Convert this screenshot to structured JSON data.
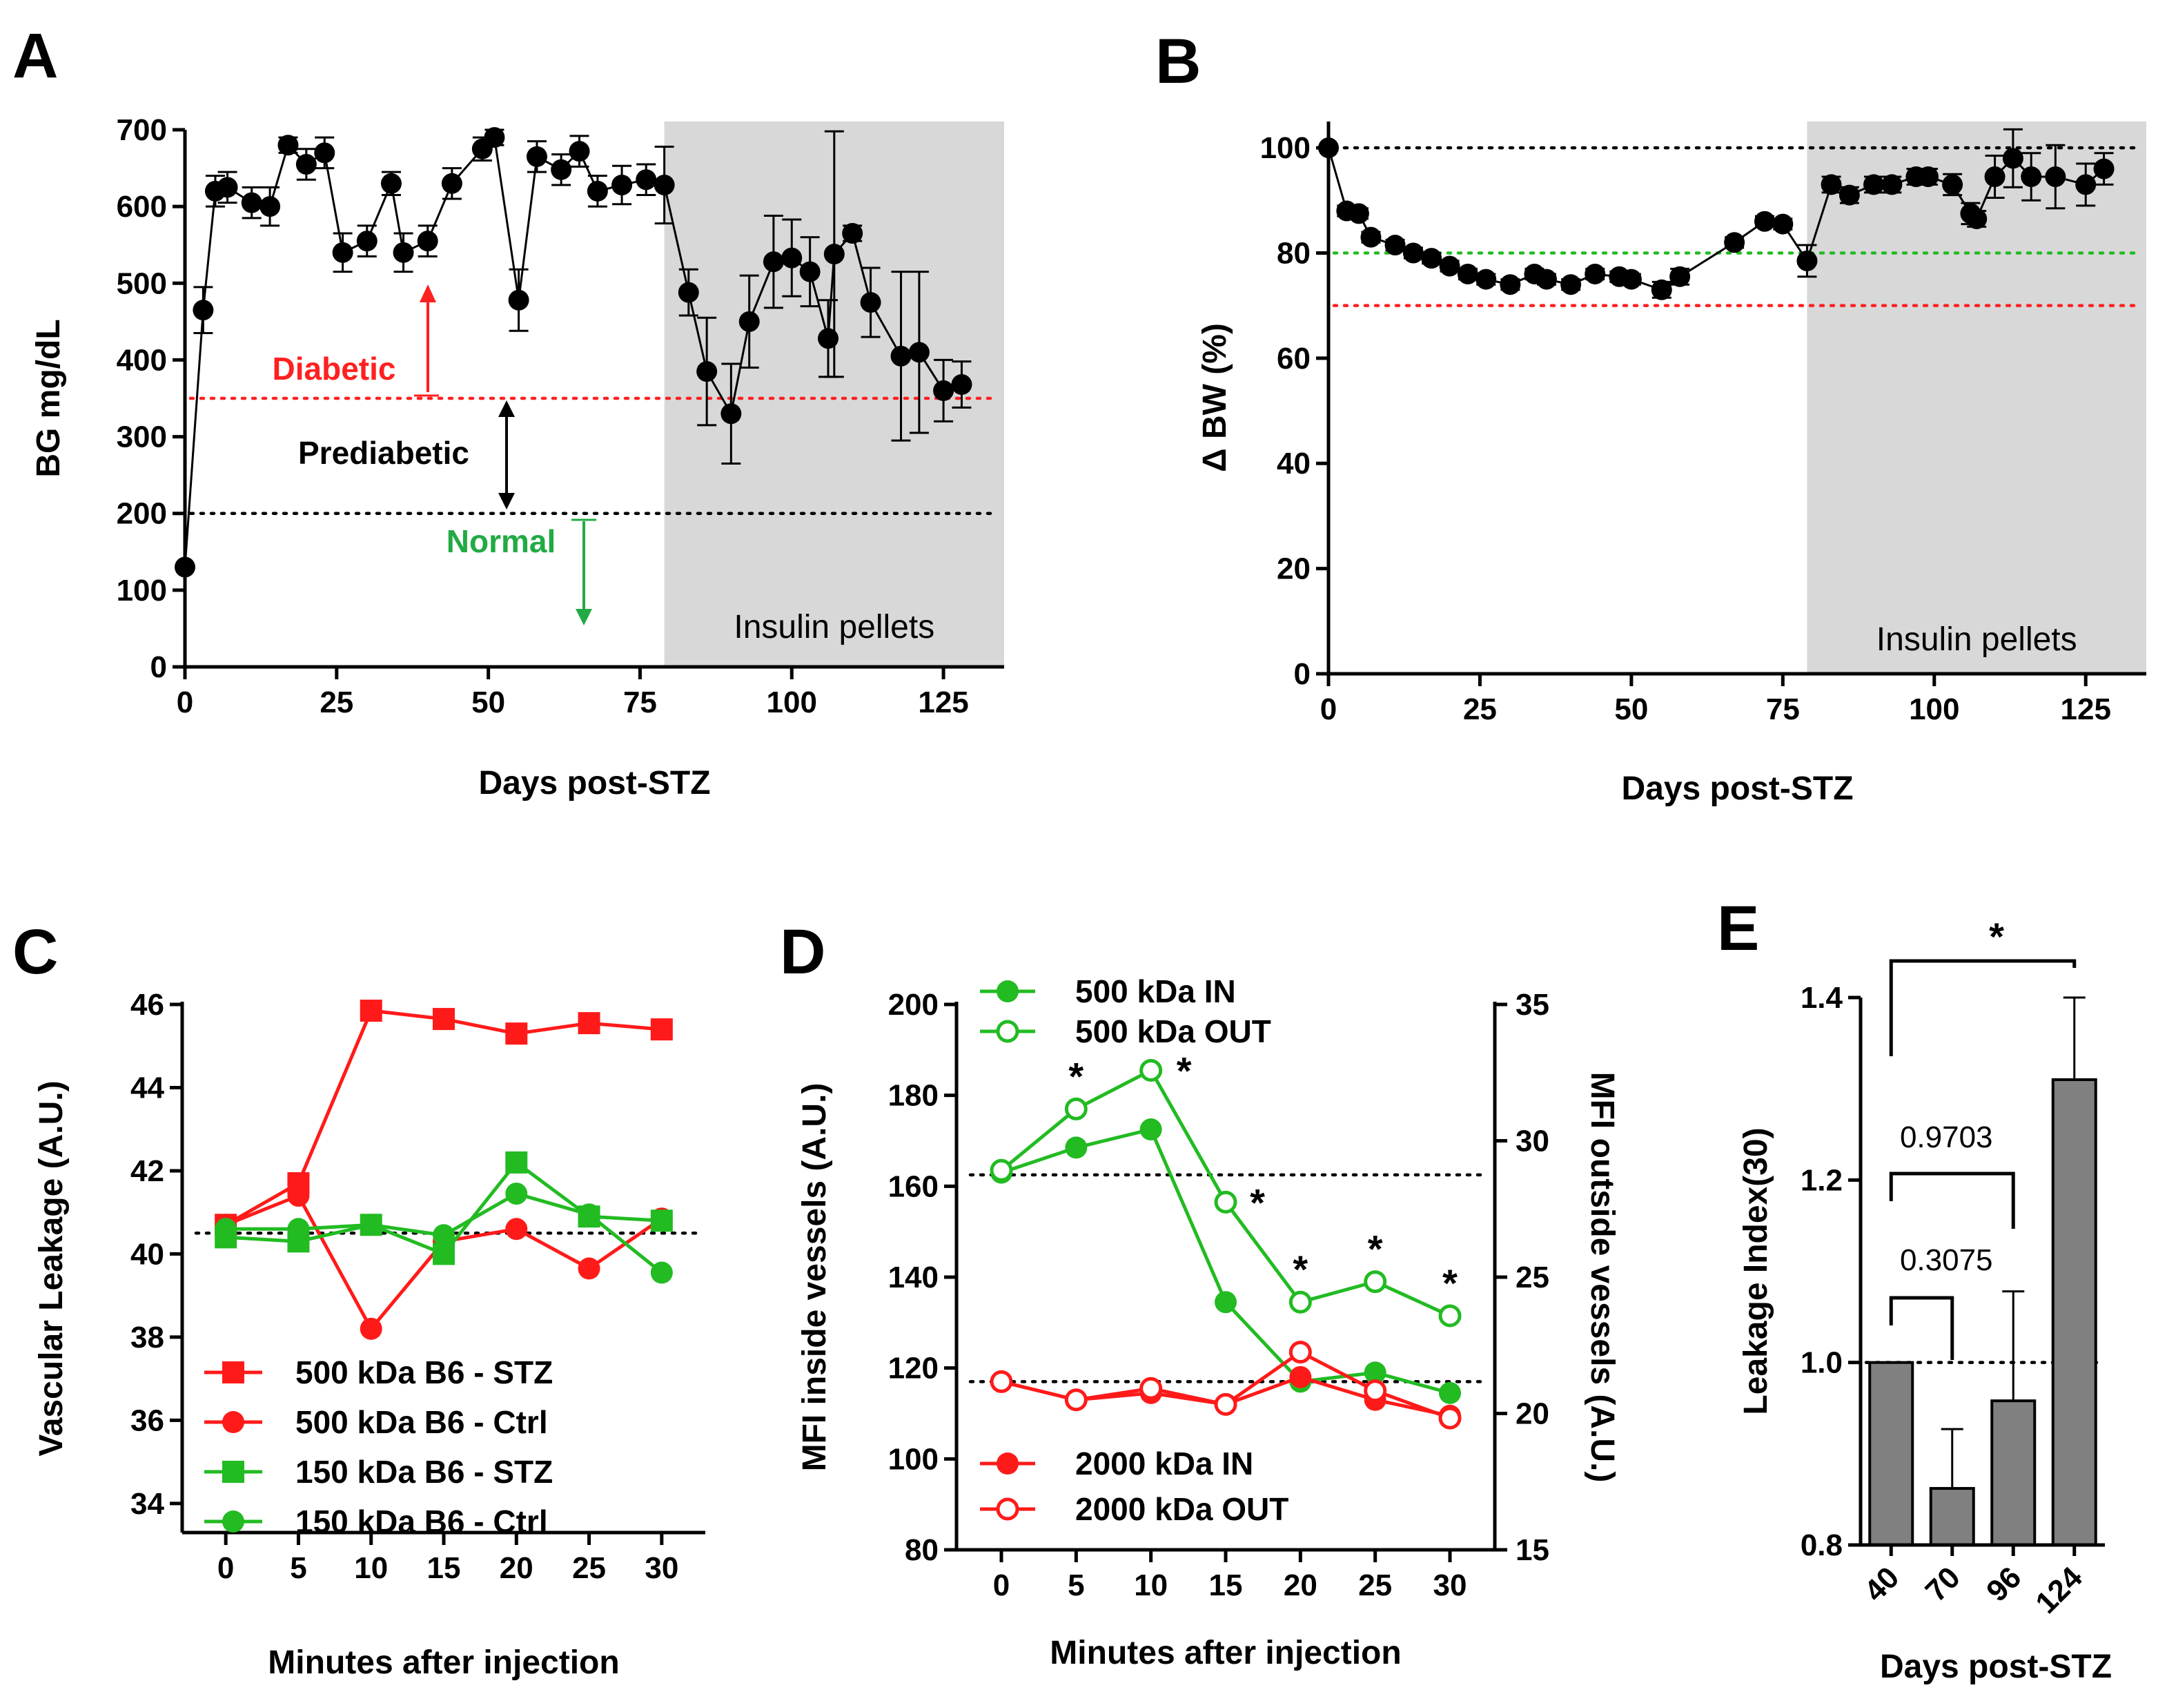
{
  "chart_data": [
    {
      "panel": "A",
      "type": "line",
      "xlabel": "Days post-STZ",
      "ylabel": "BG mg/dL",
      "xlim": [
        0,
        135
      ],
      "ylim": [
        0,
        700
      ],
      "xticks": [
        0,
        25,
        50,
        75,
        100,
        125
      ],
      "yticks": [
        0,
        100,
        200,
        300,
        400,
        500,
        600,
        700
      ],
      "shaded_region": {
        "from": 79,
        "to": 135,
        "label": "Insulin pellets"
      },
      "thresholds": [
        {
          "y": 350,
          "color": "#ff2020",
          "label": "Diabetic"
        },
        {
          "y": 200,
          "color": "#000000",
          "label": "Normal"
        }
      ],
      "annotations": {
        "diabetic": "Diabetic",
        "prediabetic": "Prediabetic",
        "normal": "Normal"
      },
      "x": [
        0,
        3,
        5,
        7,
        11,
        14,
        17,
        20,
        23,
        26,
        30,
        34,
        36,
        40,
        44,
        49,
        51,
        55,
        58,
        62,
        65,
        68,
        72,
        76,
        79,
        83,
        86,
        90,
        93,
        97,
        100,
        103,
        106,
        107,
        110,
        113,
        118,
        121,
        125,
        128
      ],
      "y": [
        130,
        465,
        620,
        625,
        605,
        600,
        680,
        655,
        670,
        540,
        555,
        630,
        540,
        555,
        630,
        675,
        690,
        478,
        665,
        648,
        672,
        620,
        628,
        635,
        628,
        488,
        385,
        330,
        450,
        528,
        533,
        515,
        428,
        538,
        565,
        475,
        405,
        410,
        360,
        368
      ],
      "err": [
        0,
        30,
        20,
        20,
        20,
        25,
        10,
        20,
        20,
        25,
        20,
        15,
        25,
        20,
        20,
        15,
        10,
        40,
        20,
        20,
        20,
        20,
        25,
        20,
        50,
        30,
        70,
        65,
        60,
        60,
        50,
        45,
        50,
        160,
        10,
        45,
        110,
        105,
        40,
        30
      ]
    },
    {
      "panel": "B",
      "type": "line",
      "xlabel": "Days post-STZ",
      "ylabel": "Δ BW (%)",
      "xlim": [
        0,
        135
      ],
      "ylim": [
        0,
        105
      ],
      "xticks": [
        0,
        25,
        50,
        75,
        100,
        125
      ],
      "yticks": [
        0,
        20,
        40,
        60,
        80,
        100
      ],
      "shaded_region": {
        "from": 79,
        "to": 135,
        "label": "Insulin pellets"
      },
      "thresholds": [
        {
          "y": 100,
          "color": "#000000"
        },
        {
          "y": 80,
          "color": "#22bb22"
        },
        {
          "y": 70,
          "color": "#ff2020"
        }
      ],
      "x": [
        0,
        3,
        5,
        7,
        11,
        14,
        17,
        20,
        23,
        26,
        30,
        34,
        36,
        40,
        44,
        48,
        50,
        55,
        58,
        67,
        72,
        75,
        79,
        83,
        86,
        90,
        93,
        97,
        99,
        103,
        106,
        107,
        110,
        113,
        116,
        120,
        125,
        128
      ],
      "y": [
        100,
        88,
        87.5,
        83,
        81.5,
        80,
        79,
        77.5,
        76,
        75,
        74,
        76,
        75,
        74,
        76,
        75.5,
        75,
        73,
        75.5,
        82,
        86,
        85.5,
        78.5,
        93,
        91,
        93,
        93,
        94.5,
        94.5,
        93,
        87.5,
        86.5,
        94.5,
        98,
        94.5,
        94.5,
        93,
        96
      ],
      "err": [
        0,
        1,
        1,
        1,
        1,
        1,
        1,
        1,
        1,
        1,
        1,
        1,
        1,
        1,
        1,
        1,
        1,
        1.5,
        1.5,
        1,
        1,
        1,
        3,
        1.5,
        1.5,
        1.5,
        1.5,
        1.5,
        1.5,
        2,
        2,
        1.5,
        4,
        5.5,
        4.5,
        6,
        4,
        3
      ]
    },
    {
      "panel": "C",
      "type": "line",
      "xlabel": "Minutes after injection",
      "ylabel": "Vascular Leakage (A.U.)",
      "xlim": [
        -3,
        33
      ],
      "ylim": [
        33.3,
        46
      ],
      "xticks": [
        0,
        5,
        10,
        15,
        20,
        25,
        30
      ],
      "yticks": [
        34,
        36,
        38,
        40,
        42,
        44,
        46
      ],
      "reference_y": 40.5,
      "series": [
        {
          "name": "500 kDa B6 - STZ",
          "color": "#ff1a1a",
          "marker": "square",
          "x": [
            0,
            5,
            10,
            15,
            20,
            25,
            30
          ],
          "values": [
            40.7,
            41.7,
            45.85,
            45.65,
            45.3,
            45.55,
            45.4
          ]
        },
        {
          "name": "500 kDa B6 - Ctrl",
          "color": "#ff1a1a",
          "marker": "circle",
          "x": [
            0,
            5,
            10,
            15,
            20,
            25,
            30
          ],
          "values": [
            40.7,
            41.4,
            38.2,
            40.3,
            40.6,
            39.65,
            40.85
          ]
        },
        {
          "name": "150 kDa B6 - STZ",
          "color": "#22bb22",
          "marker": "square",
          "x": [
            0,
            5,
            10,
            15,
            20,
            25,
            30
          ],
          "values": [
            40.4,
            40.3,
            40.7,
            40.0,
            42.2,
            40.9,
            40.8
          ]
        },
        {
          "name": "150 kDa B6 - Ctrl",
          "color": "#22bb22",
          "marker": "circle",
          "x": [
            0,
            5,
            10,
            15,
            20,
            25,
            30
          ],
          "values": [
            40.6,
            40.6,
            40.7,
            40.45,
            41.45,
            40.95,
            39.55
          ]
        }
      ]
    },
    {
      "panel": "D",
      "type": "line",
      "xlabel": "Minutes after injection",
      "ylabel": "MFI inside vessels (A.U.)",
      "ylabel_right": "MFI outside vessels (A.U.)",
      "xlim": [
        -3,
        33
      ],
      "ylim": [
        80,
        200
      ],
      "ylim_right": [
        15,
        35
      ],
      "xticks": [
        0,
        5,
        10,
        15,
        20,
        25,
        30
      ],
      "yticks": [
        80,
        100,
        120,
        140,
        160,
        180,
        200
      ],
      "yticks_right": [
        15,
        20,
        25,
        30,
        35
      ],
      "reference_y": [
        162.5,
        117
      ],
      "significance": {
        "symbol": "*",
        "at_x": [
          5,
          10,
          15,
          20,
          25,
          30
        ]
      },
      "series": [
        {
          "name": "500 kDa IN",
          "color": "#22bb22",
          "filled": true,
          "axis": "left",
          "x": [
            0,
            5,
            10,
            15,
            20,
            25,
            30
          ],
          "values": [
            163,
            168.5,
            172.5,
            134.5,
            117,
            119,
            114.5
          ]
        },
        {
          "name": "500 kDa OUT",
          "color": "#22bb22",
          "filled": false,
          "axis": "left",
          "x": [
            0,
            5,
            10,
            15,
            20,
            25,
            30
          ],
          "values": [
            163.5,
            177,
            185.5,
            156.5,
            134.5,
            139,
            131.5
          ]
        },
        {
          "name": "2000 kDa IN",
          "color": "#ff1a1a",
          "filled": true,
          "axis": "left",
          "x": [
            0,
            5,
            10,
            15,
            20,
            25,
            30
          ],
          "values": [
            117,
            113,
            114.5,
            112,
            118,
            113,
            109.5
          ]
        },
        {
          "name": "2000 kDa OUT",
          "color": "#ff1a1a",
          "filled": false,
          "axis": "left",
          "x": [
            0,
            5,
            10,
            15,
            20,
            25,
            30
          ],
          "values": [
            117,
            113,
            115.5,
            112,
            123.5,
            115,
            109
          ]
        }
      ]
    },
    {
      "panel": "E",
      "type": "bar",
      "xlabel": "Days post-STZ",
      "ylabel": "Leakage Index(30)",
      "categories": [
        "40",
        "70",
        "96",
        "124"
      ],
      "values": [
        1.0,
        0.862,
        0.958,
        1.31
      ],
      "err": [
        0,
        0.065,
        0.12,
        0.09
      ],
      "ylim": [
        0.8,
        1.4
      ],
      "yticks": [
        0.8,
        1.0,
        1.2,
        1.4
      ],
      "reference_y": 1.0,
      "comparisons": [
        {
          "from": "40",
          "to": "70",
          "label": "0.3075"
        },
        {
          "from": "40",
          "to": "96",
          "label": "0.9703"
        },
        {
          "from": "40",
          "to": "124",
          "label": "*"
        }
      ]
    }
  ]
}
